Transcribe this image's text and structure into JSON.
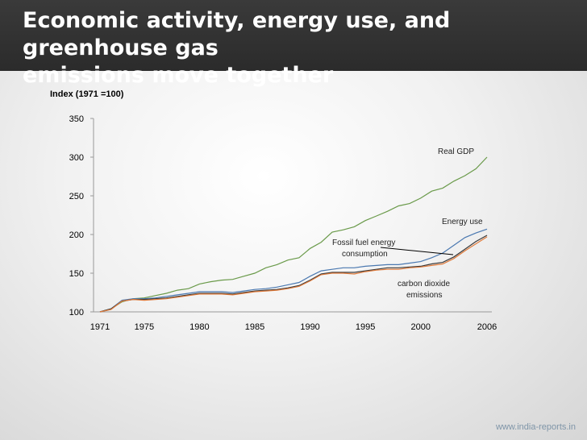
{
  "slide": {
    "title_line1": "Economic activity, energy use, and greenhouse gas",
    "title_line2": "emissions move together",
    "footer": "www.india-reports.in"
  },
  "chart_data": {
    "type": "line",
    "ylabel": "Index (1971 =100)",
    "ylim": [
      100,
      350
    ],
    "yticks": [
      100,
      150,
      200,
      250,
      300,
      350
    ],
    "xlim": [
      1971,
      2006
    ],
    "xticks": [
      1971,
      1975,
      1980,
      1985,
      1990,
      1995,
      2000,
      2006
    ],
    "grid": false,
    "x": [
      1971,
      1972,
      1973,
      1974,
      1975,
      1976,
      1977,
      1978,
      1979,
      1980,
      1981,
      1982,
      1983,
      1984,
      1985,
      1986,
      1987,
      1988,
      1989,
      1990,
      1991,
      1992,
      1993,
      1994,
      1995,
      1996,
      1997,
      1998,
      1999,
      2000,
      2001,
      2002,
      2003,
      2004,
      2005,
      2006
    ],
    "series": [
      {
        "name": "Real GDP",
        "color": "#6a9a4a",
        "values": [
          100,
          104,
          113,
          117,
          118,
          121,
          124,
          128,
          130,
          136,
          139,
          141,
          142,
          146,
          150,
          157,
          161,
          167,
          170,
          182,
          190,
          203,
          206,
          210,
          218,
          224,
          230,
          237,
          240,
          247,
          256,
          260,
          269,
          276,
          285,
          300
        ]
      },
      {
        "name": "Energy use",
        "color": "#4a78b0",
        "values": [
          100,
          104,
          115,
          117,
          117,
          118,
          120,
          122,
          124,
          126,
          126,
          126,
          125,
          127,
          129,
          130,
          132,
          135,
          138,
          146,
          153,
          155,
          157,
          157,
          159,
          160,
          161,
          161,
          163,
          165,
          170,
          176,
          186,
          196,
          202,
          207
        ]
      },
      {
        "name": "Fossil fuel energy consumption",
        "color": "#3a3a3a",
        "values": [
          100,
          104,
          114,
          116,
          116,
          117,
          118,
          120,
          122,
          124,
          124,
          124,
          123,
          125,
          127,
          128,
          129,
          131,
          134,
          141,
          149,
          151,
          151,
          151,
          153,
          155,
          157,
          157,
          158,
          159,
          162,
          164,
          171,
          181,
          191,
          199
        ]
      },
      {
        "name": "carbon dioxide emissions",
        "color": "#e07a3a",
        "values": [
          100,
          103,
          114,
          116,
          115,
          116,
          117,
          119,
          121,
          123,
          123,
          123,
          122,
          124,
          126,
          127,
          128,
          130,
          133,
          140,
          148,
          150,
          150,
          149,
          152,
          154,
          155,
          155,
          157,
          158,
          160,
          162,
          169,
          179,
          188,
          197
        ]
      }
    ],
    "annotations": [
      {
        "text": "Real GDP",
        "series": "Real GDP"
      },
      {
        "text": "Energy use",
        "series": "Energy use"
      },
      {
        "text": "Fossil fuel energy",
        "text2": "consumption",
        "series": "Fossil fuel energy consumption"
      },
      {
        "text": "carbon dioxide",
        "text2": "emissions",
        "series": "carbon dioxide emissions"
      }
    ]
  }
}
